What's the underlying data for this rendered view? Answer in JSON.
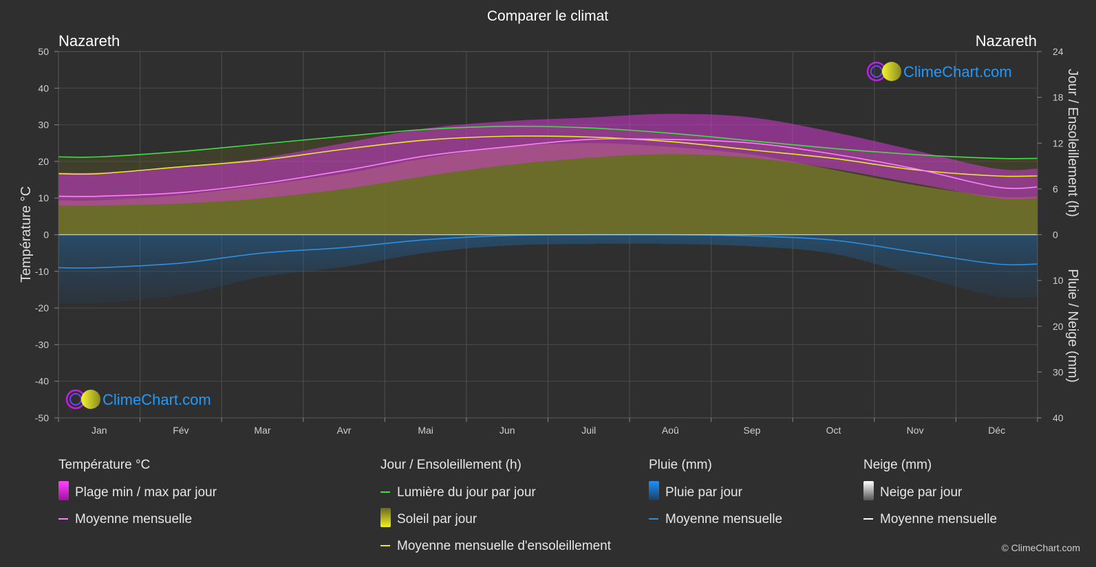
{
  "title": "Comparer le climat",
  "location_left": "Nazareth",
  "location_right": "Nazareth",
  "brand": "ClimeChart.com",
  "copyright": "© ClimeChart.com",
  "legend": {
    "groups": [
      {
        "heading": "Température °C",
        "items": [
          {
            "label": "Plage min / max par jour",
            "swatch": "gradient-magenta"
          },
          {
            "label": "Moyenne mensuelle",
            "swatch": "line",
            "color": "#ff80ff"
          }
        ]
      },
      {
        "heading": "Jour / Ensoleillement (h)",
        "items": [
          {
            "label": "Lumière du jour par jour",
            "swatch": "line",
            "color": "#44dd44"
          },
          {
            "label": "Soleil par jour",
            "swatch": "gradient-yellow"
          },
          {
            "label": "Moyenne mensuelle d'ensoleillement",
            "swatch": "line",
            "color": "#e8e830"
          }
        ]
      },
      {
        "heading": "Pluie (mm)",
        "items": [
          {
            "label": "Pluie par jour",
            "swatch": "gradient-blue"
          },
          {
            "label": "Moyenne mensuelle",
            "swatch": "line",
            "color": "#2e8fe0"
          }
        ]
      },
      {
        "heading": "Neige (mm)",
        "items": [
          {
            "label": "Neige par jour",
            "swatch": "gradient-white"
          },
          {
            "label": "Moyenne mensuelle",
            "swatch": "line",
            "color": "#ffffff"
          }
        ]
      }
    ]
  },
  "chart_data": {
    "type": "area",
    "title": "Comparer le climat",
    "categories": [
      "Jan",
      "Fév",
      "Mar",
      "Avr",
      "Mai",
      "Jun",
      "Juil",
      "Aoû",
      "Sep",
      "Oct",
      "Nov",
      "Déc"
    ],
    "y_left": {
      "label": "Température °C",
      "range": [
        -50,
        50
      ],
      "ticks": [
        50,
        40,
        30,
        20,
        10,
        0,
        -10,
        -20,
        -30,
        -40,
        -50
      ]
    },
    "y_right_top": {
      "label": "Jour / Ensoleillement (h)",
      "range": [
        0,
        24
      ],
      "ticks": [
        24,
        18,
        12,
        6,
        0
      ]
    },
    "y_right_bottom": {
      "label": "Pluie / Neige (mm)",
      "range": [
        0,
        40
      ],
      "ticks": [
        0,
        10,
        20,
        30,
        40
      ]
    },
    "grid": true,
    "colors": {
      "temp_range": "#d020d0",
      "temp_mean": "#ff80ff",
      "daylight": "#44dd44",
      "sunshine_fill": "#8c8c2a",
      "sunshine_mean": "#e8e830",
      "rain": "#2e8fe0",
      "background": "#2f2f2f"
    },
    "series": [
      {
        "name": "Plage min / max par jour",
        "unit": "°C",
        "min": [
          8,
          8.5,
          10,
          12.5,
          16,
          19,
          21,
          22,
          21,
          18,
          14,
          10
        ],
        "max": [
          17,
          18.5,
          21,
          25,
          29,
          31,
          32,
          33,
          32,
          28,
          23,
          18
        ]
      },
      {
        "name": "Moyenne mensuelle",
        "unit": "°C",
        "values": [
          10.5,
          11.5,
          14,
          17.5,
          21.5,
          24,
          26,
          26,
          25,
          22,
          18,
          13
        ]
      },
      {
        "name": "Lumière du jour par jour",
        "unit": "h",
        "values": [
          10.2,
          10.9,
          11.9,
          12.9,
          13.8,
          14.2,
          14.0,
          13.3,
          12.3,
          11.3,
          10.5,
          10.0
        ]
      },
      {
        "name": "Soleil par jour",
        "unit": "h",
        "values": [
          4.5,
          5.2,
          6.5,
          8.0,
          10.0,
          11.5,
          12.0,
          11.5,
          10.5,
          8.5,
          6.5,
          5.0
        ]
      },
      {
        "name": "Moyenne mensuelle d'ensoleillement",
        "unit": "h",
        "values": [
          8.0,
          8.9,
          9.8,
          11.2,
          12.4,
          12.9,
          12.8,
          12.2,
          11.1,
          10.0,
          8.5,
          7.7
        ]
      },
      {
        "name": "Moyenne mensuelle (Pluie)",
        "unit": "mm",
        "values": [
          7.2,
          6.2,
          4.0,
          2.8,
          1.1,
          0.2,
          0.0,
          0.0,
          0.3,
          1.2,
          3.8,
          6.4
        ]
      }
    ]
  }
}
